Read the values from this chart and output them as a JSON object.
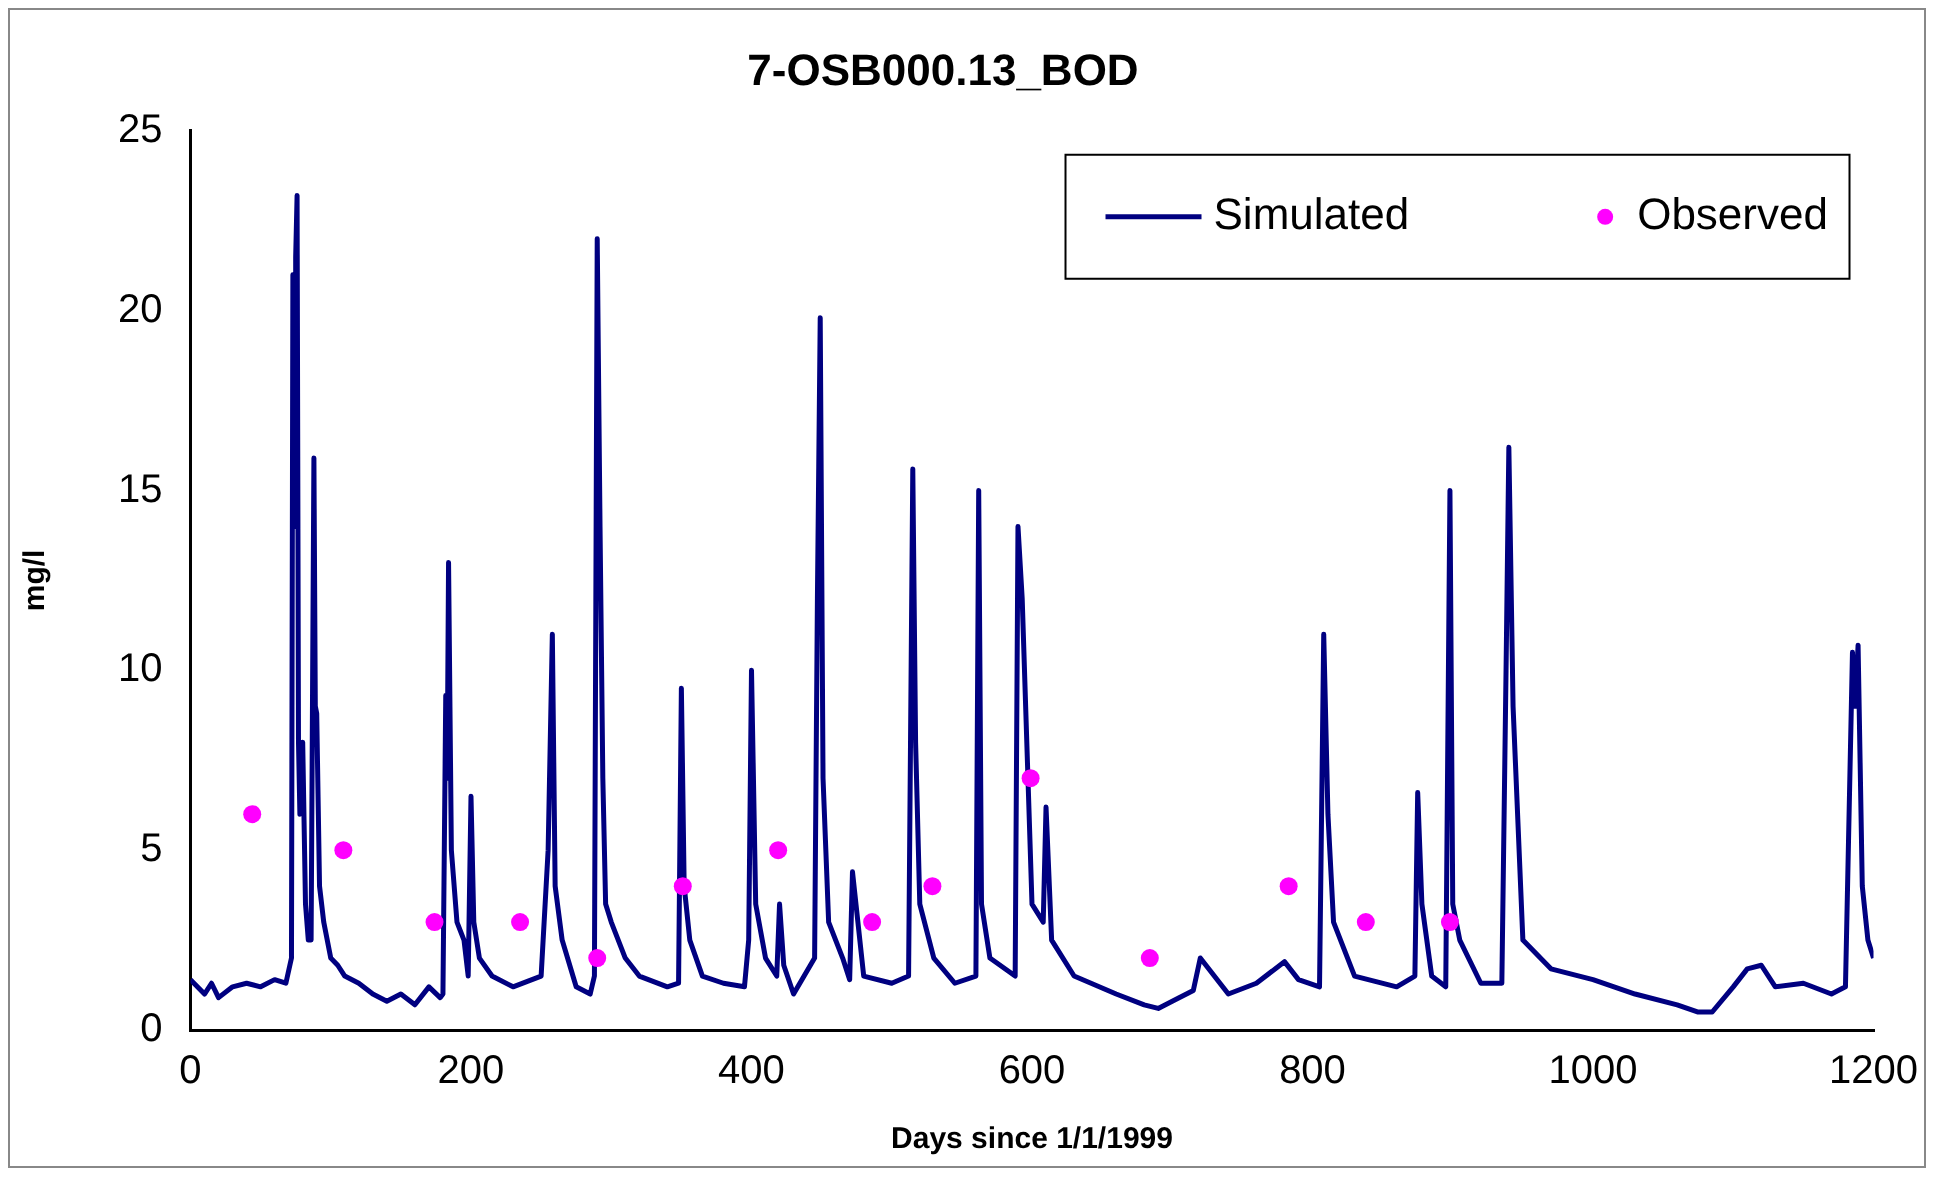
{
  "chart_data": {
    "type": "line",
    "title": "7-OSB000.13_BOD",
    "xlabel": "Days since 1/1/1999",
    "ylabel": "mg/l",
    "xlim": [
      0,
      1200
    ],
    "xticks": [
      0,
      200,
      400,
      600,
      800,
      1000,
      1200
    ],
    "ylim": [
      0,
      25
    ],
    "yticks": [
      0,
      5,
      10,
      15,
      20,
      25
    ],
    "grid": false,
    "legend": "top right",
    "series": [
      {
        "name": "Simulated",
        "color": "#000080",
        "type": "line",
        "marker": "none",
        "x": [
          0,
          10,
          15,
          20,
          30,
          40,
          50,
          60,
          68,
          72,
          73,
          74,
          75,
          76,
          77,
          78,
          80,
          82,
          84,
          86,
          88,
          89,
          90,
          92,
          95,
          100,
          105,
          110,
          120,
          130,
          140,
          150,
          160,
          170,
          178,
          180,
          182,
          183,
          184,
          186,
          190,
          195,
          198,
          200,
          202,
          206,
          215,
          230,
          250,
          255,
          258,
          260,
          265,
          275,
          285,
          288,
          290,
          292,
          294,
          296,
          300,
          310,
          320,
          340,
          348,
          350,
          352,
          356,
          365,
          380,
          395,
          398,
          400,
          403,
          410,
          418,
          420,
          423,
          430,
          445,
          447,
          449,
          451,
          455,
          465,
          470,
          472,
          480,
          500,
          512,
          515,
          517,
          520,
          530,
          545,
          560,
          562,
          564,
          570,
          588,
          590,
          593,
          600,
          608,
          610,
          614,
          630,
          660,
          680,
          690,
          700,
          715,
          720,
          740,
          760,
          780,
          790,
          805,
          808,
          811,
          815,
          830,
          860,
          873,
          875,
          878,
          885,
          895,
          898,
          900,
          905,
          920,
          935,
          938,
          940,
          943,
          950,
          970,
          1000,
          1030,
          1060,
          1075,
          1085,
          1100,
          1110,
          1120,
          1130,
          1150,
          1170,
          1180,
          1185,
          1187,
          1189,
          1192,
          1196,
          1200
        ],
        "values": [
          1.4,
          1.0,
          1.3,
          0.9,
          1.2,
          1.3,
          1.2,
          1.4,
          1.3,
          2.0,
          21.0,
          14,
          21.5,
          23.2,
          8,
          6,
          8,
          3.5,
          2.5,
          2.5,
          15.9,
          9,
          8.8,
          4,
          3,
          2,
          1.8,
          1.5,
          1.3,
          1.0,
          0.8,
          1.0,
          0.7,
          1.2,
          0.9,
          1.0,
          9.3,
          7,
          13,
          5,
          3.0,
          2.5,
          1.5,
          6.5,
          3.0,
          2.0,
          1.5,
          1.2,
          1.5,
          5,
          11,
          4,
          2.5,
          1.2,
          1.0,
          1.5,
          22,
          14,
          7,
          3.5,
          3.0,
          2.0,
          1.5,
          1.2,
          1.3,
          9.5,
          4,
          2.5,
          1.5,
          1.3,
          1.2,
          2.5,
          10,
          3.5,
          2.0,
          1.5,
          3.5,
          1.8,
          1.0,
          2.0,
          12,
          19.8,
          7,
          3.0,
          2.0,
          1.4,
          4.4,
          1.5,
          1.3,
          1.5,
          15.6,
          8,
          3.5,
          2.0,
          1.3,
          1.5,
          15,
          3.5,
          2.0,
          1.5,
          14,
          12,
          3.5,
          3.0,
          6.2,
          2.5,
          1.5,
          1.0,
          0.7,
          0.6,
          0.8,
          1.1,
          2.0,
          1.0,
          1.3,
          1.9,
          1.4,
          1.2,
          11,
          6,
          3.0,
          1.5,
          1.2,
          1.5,
          6.6,
          3.5,
          1.5,
          1.2,
          15,
          3.5,
          2.5,
          1.3,
          1.3,
          10,
          16.2,
          9,
          2.5,
          1.7,
          1.4,
          1.0,
          0.7,
          0.5,
          0.5,
          1.2,
          1.7,
          1.8,
          1.2,
          1.3,
          1.0,
          1.2,
          10.5,
          9,
          10.7,
          4,
          2.5,
          2.0
        ]
      },
      {
        "name": "Observed",
        "color": "#ff00ff",
        "type": "scatter",
        "marker": "circle",
        "x": [
          44,
          109,
          174,
          235,
          290,
          351,
          419,
          486,
          529,
          599,
          684,
          783,
          838,
          898
        ],
        "values": [
          6,
          5,
          3,
          3,
          2,
          4,
          5,
          3,
          4,
          7,
          2,
          4,
          3,
          3
        ]
      }
    ]
  }
}
